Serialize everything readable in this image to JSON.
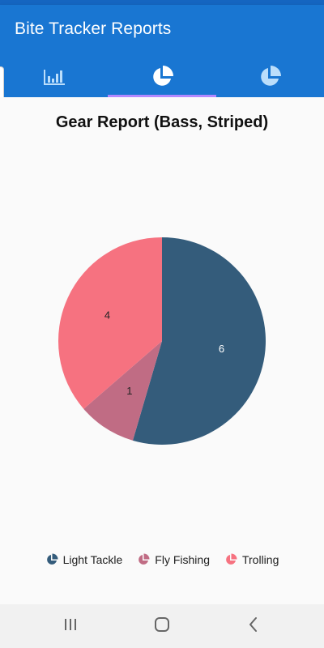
{
  "app_bar": {
    "title": "Bite Tracker Reports"
  },
  "tabs": [
    {
      "icon": "bar-chart-icon",
      "selected": false
    },
    {
      "icon": "pie-chart-icon",
      "selected": true
    },
    {
      "icon": "pie-chart-icon",
      "selected": false
    }
  ],
  "colors": {
    "app_bar": "#1976d2",
    "status_bar": "#1565c0",
    "tab_indicator": "#b388ff",
    "icon_color": "#bbdefb"
  },
  "report": {
    "title": "Gear Report (Bass, Striped)"
  },
  "chart_data": {
    "type": "pie",
    "title": "Gear Report (Bass, Striped)",
    "categories": [
      "Light Tackle",
      "Fly Fishing",
      "Trolling"
    ],
    "values": [
      6,
      1,
      4
    ],
    "colors": [
      "#345c7b",
      "#c06c84",
      "#f67280"
    ],
    "legend_position": "bottom"
  },
  "nav": {
    "icons": [
      "recents-icon",
      "home-icon",
      "back-icon"
    ]
  }
}
